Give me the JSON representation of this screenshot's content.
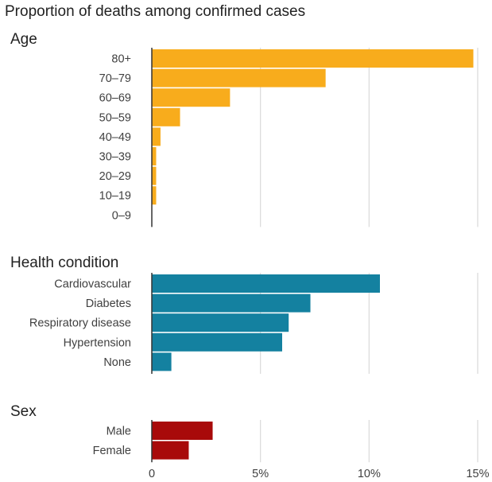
{
  "chart_data": {
    "type": "bar",
    "orientation": "horizontal",
    "title": "Proportion of deaths among confirmed cases",
    "xlim": [
      0,
      15
    ],
    "x_ticks": [
      {
        "value": 0,
        "label": "0"
      },
      {
        "value": 5,
        "label": "5%"
      },
      {
        "value": 10,
        "label": "10%"
      },
      {
        "value": 15,
        "label": "15%"
      }
    ],
    "grid": true,
    "panels": [
      {
        "title": "Age",
        "color": "#F8AC1C",
        "categories": [
          "80+",
          "70–79",
          "60–69",
          "50–59",
          "40–49",
          "30–39",
          "20–29",
          "10–19",
          "0–9"
        ],
        "values": [
          14.8,
          8.0,
          3.6,
          1.3,
          0.4,
          0.2,
          0.2,
          0.2,
          0.0
        ]
      },
      {
        "title": "Health condition",
        "color": "#1481A0",
        "categories": [
          "Cardiovascular",
          "Diabetes",
          "Respiratory disease",
          "Hypertension",
          "None"
        ],
        "values": [
          10.5,
          7.3,
          6.3,
          6.0,
          0.9
        ]
      },
      {
        "title": "Sex",
        "color": "#A80A0A",
        "categories": [
          "Male",
          "Female"
        ],
        "values": [
          2.8,
          1.7
        ]
      }
    ]
  }
}
